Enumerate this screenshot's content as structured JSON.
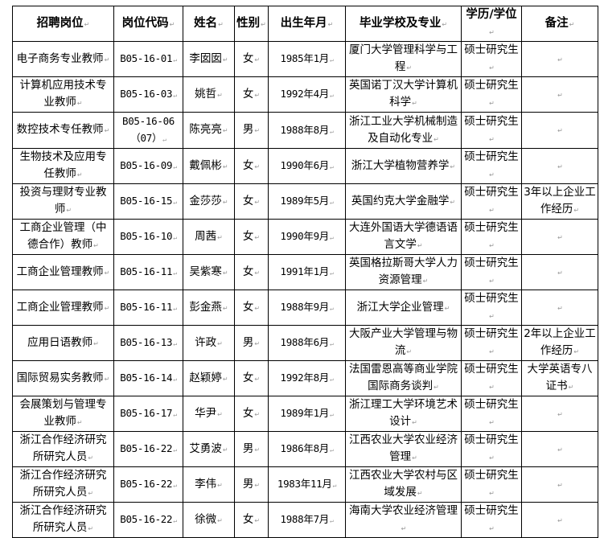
{
  "headers": [
    "招聘岗位",
    "岗位代码",
    "姓名",
    "性别",
    "出生年月",
    "毕业学校及专业",
    "学历/学位",
    "备注"
  ],
  "rows": [
    {
      "position": "电子商务专业教师",
      "code": "B05-16-01",
      "name": "李囡囡",
      "gender": "女",
      "birth": "1985年1月",
      "school": "厦门大学管理科学与工程",
      "degree": "硕士研究生",
      "note": ""
    },
    {
      "position": "计算机应用技术专业教师",
      "code": "B05-16-03",
      "name": "姚哲",
      "gender": "女",
      "birth": "1992年4月",
      "school": "英国诺丁汉大学计算机科学",
      "degree": "硕士研究生",
      "note": ""
    },
    {
      "position": "数控技术专任教师",
      "code": "B05-16-06（07）",
      "name": "陈亮亮",
      "gender": "男",
      "birth": "1988年8月",
      "school": "浙江工业大学机械制造及自动化专业",
      "degree": "硕士研究生",
      "note": ""
    },
    {
      "position": "生物技术及应用专任教师",
      "code": "B05-16-09",
      "name": "戴佩彬",
      "gender": "女",
      "birth": "1990年6月",
      "school": "浙江大学植物营养学",
      "degree": "硕士研究生",
      "note": ""
    },
    {
      "position": "投资与理财专业教师",
      "code": "B05-16-15",
      "name": "金莎莎",
      "gender": "女",
      "birth": "1989年5月",
      "school": "英国约克大学金融学",
      "degree": "硕士研究生",
      "note": "3年以上企业工作经历"
    },
    {
      "position": "工商企业管理（中德合作）教师",
      "code": "B05-16-10",
      "name": "周茜",
      "gender": "女",
      "birth": "1990年9月",
      "school": "大连外国语大学德语语言文学",
      "degree": "硕士研究生",
      "note": ""
    },
    {
      "position": "工商企业管理教师",
      "code": "B05-16-11",
      "name": "吴紫寒",
      "gender": "女",
      "birth": "1991年1月",
      "school": "英国格拉斯哥大学人力资源管理",
      "degree": "硕士研究生",
      "note": ""
    },
    {
      "position": "工商企业管理教师",
      "code": "B05-16-11",
      "name": "彭金燕",
      "gender": "女",
      "birth": "1988年9月",
      "school": "浙江大学企业管理",
      "degree": "硕士研究生",
      "note": ""
    },
    {
      "position": "应用日语教师",
      "code": "B05-16-13",
      "name": "许政",
      "gender": "男",
      "birth": "1988年6月",
      "school": "大阪产业大学管理与物流",
      "degree": "硕士研究生",
      "note": "2年以上企业工作经历"
    },
    {
      "position": "国际贸易实务教师",
      "code": "B05-16-14",
      "name": "赵颖婷",
      "gender": "女",
      "birth": "1992年8月",
      "school": "法国雷恩高等商业学院国际商务谈判",
      "degree": "硕士研究生",
      "note": "大学英语专八证书"
    },
    {
      "position": "会展策划与管理专业教师",
      "code": "B05-16-17",
      "name": "华尹",
      "gender": "女",
      "birth": "1989年1月",
      "school": "浙江理工大学环境艺术设计",
      "degree": "硕士研究生",
      "note": ""
    },
    {
      "position": "浙江合作经济研究所研究人员",
      "code": "B05-16-22",
      "name": "艾勇波",
      "gender": "男",
      "birth": "1986年8月",
      "school": "江西农业大学农业经济管理",
      "degree": "硕士研究生",
      "note": ""
    },
    {
      "position": "浙江合作经济研究所研究人员",
      "code": "B05-16-22",
      "name": "李伟",
      "gender": "男",
      "birth": "1983年11月",
      "school": "江西农业大学农村与区域发展",
      "degree": "硕士研究生",
      "note": ""
    },
    {
      "position": "浙江合作经济研究所研究人员",
      "code": "B05-16-22",
      "name": "徐微",
      "gender": "女",
      "birth": "1988年7月",
      "school": "海南大学农业经济管理",
      "degree": "硕士研究生",
      "note": ""
    }
  ]
}
